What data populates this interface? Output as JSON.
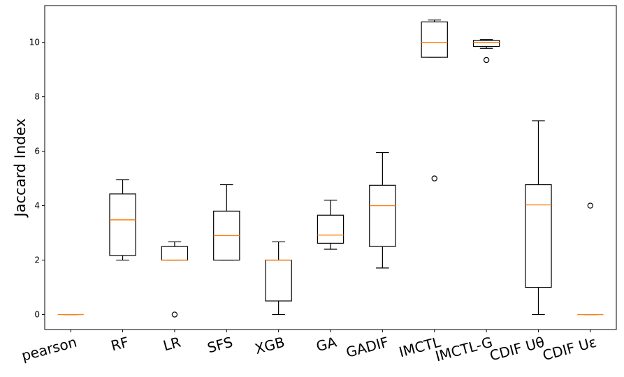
{
  "chart_data": {
    "type": "box",
    "title": "",
    "xlabel": "",
    "ylabel": "Jaccard Index",
    "ylim": [
      -0.55,
      11.35
    ],
    "yticks": [
      "0",
      "2",
      "4",
      "6",
      "8",
      "10"
    ],
    "grid": false,
    "median_color": "#ff7f0e",
    "box_color": "#000000",
    "categories": [
      "pearson",
      "RF",
      "LR",
      "SFS",
      "XGB",
      "GA",
      "GADIF",
      "IMCTL",
      "IMCTL-G",
      "CDIF Uθ",
      "CDIF Uε"
    ],
    "boxes": [
      {
        "label": "pearson",
        "whisker_low": 0,
        "q1": 0,
        "median": 0,
        "q3": 0,
        "whisker_high": 0,
        "outliers": []
      },
      {
        "label": "RF",
        "whisker_low": 2.0,
        "q1": 2.17,
        "median": 3.48,
        "q3": 4.43,
        "whisker_high": 4.95,
        "outliers": []
      },
      {
        "label": "LR",
        "whisker_low": 2.0,
        "q1": 2.0,
        "median": 2.0,
        "q3": 2.5,
        "whisker_high": 2.67,
        "outliers": [
          0
        ]
      },
      {
        "label": "SFS",
        "whisker_low": 2.0,
        "q1": 2.0,
        "median": 2.9,
        "q3": 3.8,
        "whisker_high": 4.77,
        "outliers": []
      },
      {
        "label": "XGB",
        "whisker_low": 0,
        "q1": 0.5,
        "median": 2.0,
        "q3": 2.0,
        "whisker_high": 2.67,
        "outliers": []
      },
      {
        "label": "GA",
        "whisker_low": 2.4,
        "q1": 2.62,
        "median": 2.92,
        "q3": 3.65,
        "whisker_high": 4.2,
        "outliers": []
      },
      {
        "label": "GADIF",
        "whisker_low": 1.71,
        "q1": 2.5,
        "median": 4.0,
        "q3": 4.75,
        "whisker_high": 5.95,
        "outliers": []
      },
      {
        "label": "IMCTL",
        "whisker_low": 9.45,
        "q1": 9.45,
        "median": 10.0,
        "q3": 10.75,
        "whisker_high": 10.82,
        "outliers": [
          5.0
        ]
      },
      {
        "label": "IMCTL-G",
        "whisker_low": 9.78,
        "q1": 9.85,
        "median": 10.0,
        "q3": 10.07,
        "whisker_high": 10.1,
        "outliers": [
          9.35
        ]
      },
      {
        "label": "CDIF Uθ",
        "whisker_low": 0,
        "q1": 1.0,
        "median": 4.03,
        "q3": 4.77,
        "whisker_high": 7.12,
        "outliers": []
      },
      {
        "label": "CDIF Uε",
        "whisker_low": 0,
        "q1": 0,
        "median": 0,
        "q3": 0,
        "whisker_high": 0,
        "outliers": [
          4.0
        ]
      }
    ]
  }
}
